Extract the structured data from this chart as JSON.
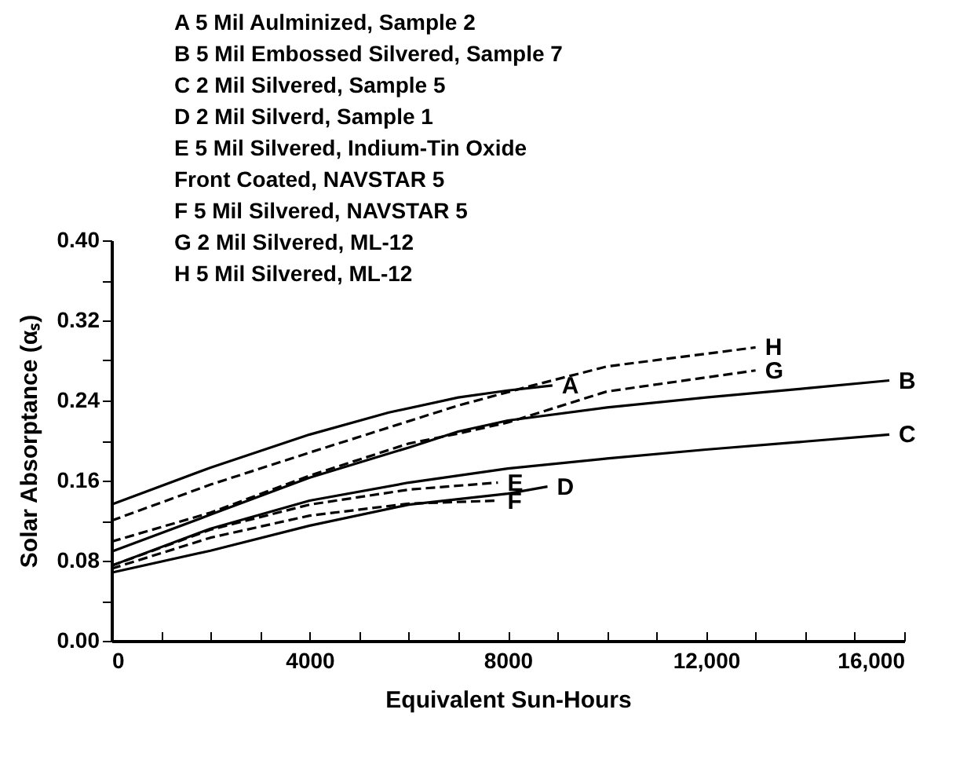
{
  "chart_data": {
    "type": "line",
    "xlabel": "Equivalent Sun-Hours",
    "ylabel": "Solar Absorptance (αₛ)",
    "annotations": [
      "A  5 Mil Aulminized, Sample 2",
      "B  5 Mil Embossed Silvered, Sample 7",
      "C  2 Mil Silvered, Sample 5",
      "D  2 Mil Silverd, Sample 1",
      "E  5 Mil Silvered, Indium-Tin Oxide",
      "Front Coated, NAVSTAR 5",
      "F  5 Mil Silvered, NAVSTAR 5",
      "G  2 Mil Silvered, ML-12",
      "H  5 Mil Silvered, ML-12"
    ],
    "series": [
      {
        "name": "A",
        "color": "#000000",
        "line_style": "solid",
        "x": [
          0,
          2000,
          4000,
          5600,
          7000,
          8000,
          8900
        ],
        "values": [
          0.136,
          0.173,
          0.206,
          0.228,
          0.243,
          0.25,
          0.255
        ]
      },
      {
        "name": "B",
        "color": "#000000",
        "line_style": "solid",
        "x": [
          0,
          2000,
          4000,
          6000,
          7000,
          8000,
          10000,
          12000,
          14000,
          15700
        ],
        "values": [
          0.089,
          0.126,
          0.163,
          0.193,
          0.209,
          0.22,
          0.233,
          0.243,
          0.252,
          0.26
        ]
      },
      {
        "name": "C",
        "color": "#000000",
        "line_style": "solid",
        "x": [
          0,
          2000,
          4000,
          6000,
          7000,
          8000,
          10000,
          12000,
          14000,
          15700
        ],
        "values": [
          0.075,
          0.112,
          0.14,
          0.158,
          0.165,
          0.172,
          0.182,
          0.191,
          0.199,
          0.206
        ]
      },
      {
        "name": "D",
        "color": "#000000",
        "line_style": "solid",
        "x": [
          0,
          2000,
          4000,
          6000,
          8000,
          8800
        ],
        "values": [
          0.068,
          0.09,
          0.115,
          0.136,
          0.147,
          0.154
        ]
      },
      {
        "name": "E",
        "color": "#000000",
        "line_style": "dashed",
        "x": [
          0,
          2000,
          4000,
          6000,
          7800
        ],
        "values": [
          0.075,
          0.111,
          0.136,
          0.151,
          0.158
        ]
      },
      {
        "name": "F",
        "color": "#000000",
        "line_style": "dashed",
        "x": [
          0,
          2000,
          4000,
          6000,
          7800
        ],
        "values": [
          0.072,
          0.103,
          0.125,
          0.137,
          0.14
        ]
      },
      {
        "name": "G",
        "color": "#000000",
        "line_style": "dashed",
        "x": [
          0,
          2000,
          4000,
          6000,
          7000,
          8000,
          10000,
          13000
        ],
        "values": [
          0.099,
          0.128,
          0.165,
          0.197,
          0.207,
          0.218,
          0.249,
          0.27
        ]
      },
      {
        "name": "H",
        "color": "#000000",
        "line_style": "dashed",
        "x": [
          0,
          2000,
          4000,
          7000,
          8500,
          10000,
          13000
        ],
        "values": [
          0.12,
          0.156,
          0.188,
          0.235,
          0.255,
          0.274,
          0.293
        ]
      }
    ],
    "xlim": [
      0,
      16000
    ],
    "ylim": [
      0,
      0.4
    ],
    "xticks": [
      {
        "value": 0,
        "label": "0"
      },
      {
        "value": 1000,
        "label": null
      },
      {
        "value": 2000,
        "label": null
      },
      {
        "value": 3000,
        "label": null
      },
      {
        "value": 4000,
        "label": "4000"
      },
      {
        "value": 5000,
        "label": null
      },
      {
        "value": 6000,
        "label": null
      },
      {
        "value": 7000,
        "label": null
      },
      {
        "value": 8000,
        "label": "8000"
      },
      {
        "value": 9000,
        "label": null
      },
      {
        "value": 10000,
        "label": null
      },
      {
        "value": 11000,
        "label": null
      },
      {
        "value": 12000,
        "label": "12,000"
      },
      {
        "value": 13000,
        "label": null
      },
      {
        "value": 14000,
        "label": null
      },
      {
        "value": 15000,
        "label": null
      },
      {
        "value": 16000,
        "label": "16,000"
      }
    ],
    "yticks": [
      {
        "value": 0,
        "label": "0.00"
      },
      {
        "value": 0.04,
        "label": null
      },
      {
        "value": 0.08,
        "label": "0.08"
      },
      {
        "value": 0.12,
        "label": null
      },
      {
        "value": 0.16,
        "label": "0.16"
      },
      {
        "value": 0.2,
        "label": null
      },
      {
        "value": 0.24,
        "label": "0.24"
      },
      {
        "value": 0.28,
        "label": null
      },
      {
        "value": 0.32,
        "label": "0.32"
      },
      {
        "value": 0.36,
        "label": null
      },
      {
        "value": 0.4,
        "label": "0.40"
      }
    ],
    "grid": false,
    "marker": "none"
  }
}
